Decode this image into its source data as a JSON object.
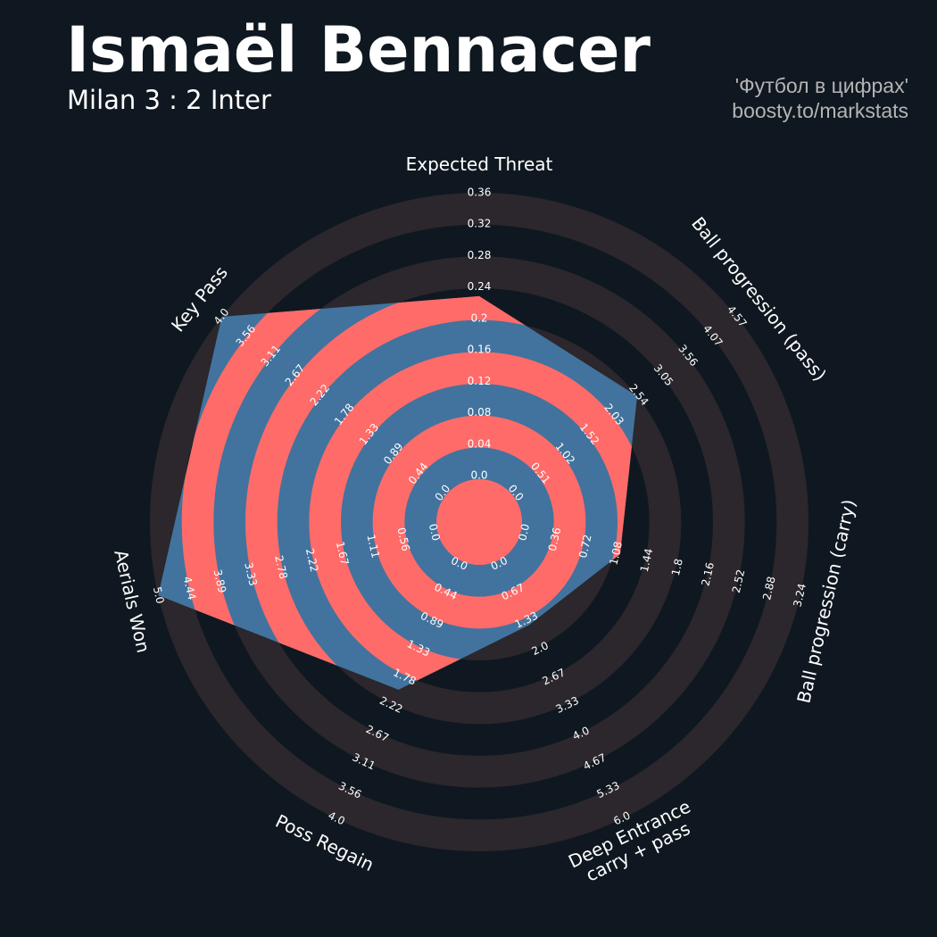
{
  "chart_data": {
    "type": "radar",
    "title": "Ismaël Bennacer",
    "subtitle": "Milan 3 : 2 Inter",
    "credits": [
      "'Футбол в цифрах'",
      "boosty.to/markstats"
    ],
    "colors": {
      "inside_a": "#41739e",
      "inside_b": "#ff6b68",
      "outside_a": "#2b272c"
    },
    "params": [
      {
        "name": [
          "Expected Threat"
        ],
        "lim": [
          0,
          0.36
        ],
        "ticks": [
          {
            "value": 0,
            "label": "0.0"
          },
          0.04,
          0.08,
          0.12,
          0.16,
          0.2,
          0.24,
          0.28,
          0.32,
          0.36
        ]
      },
      {
        "name": [
          "Ball progression (pass)"
        ],
        "lim": [
          0,
          4.57
        ],
        "ticks": [
          {
            "value": 0,
            "label": "0.0"
          },
          0.51,
          1.02,
          1.52,
          2.03,
          2.54,
          3.05,
          3.56,
          4.07,
          4.57
        ]
      },
      {
        "name": [
          "Ball progression (carry)"
        ],
        "lim": [
          0,
          3.24
        ],
        "ticks": [
          {
            "value": 0,
            "label": "0.0"
          },
          0.36,
          0.72,
          1.08,
          1.44,
          1.8,
          2.16,
          2.52,
          2.88,
          3.24
        ]
      },
      {
        "name": [
          "Deep Entrance",
          "carry + pass"
        ],
        "lim": [
          0,
          6
        ],
        "ticks": [
          {
            "value": 0,
            "label": "0.0"
          },
          0.67,
          1.33,
          {
            "value": 2,
            "label": "2.0"
          },
          2.67,
          3.33,
          {
            "value": 4,
            "label": "4.0"
          },
          4.67,
          5.33,
          {
            "value": 6,
            "label": "6.0"
          }
        ]
      },
      {
        "name": [
          "Poss Regain"
        ],
        "lim": [
          0,
          4
        ],
        "ticks": [
          {
            "value": 0,
            "label": "0.0"
          },
          0.44,
          0.89,
          1.33,
          1.78,
          2.22,
          2.67,
          3.11,
          3.56,
          {
            "value": 4,
            "label": "4.0"
          }
        ]
      },
      {
        "name": [
          "Aerials Won"
        ],
        "lim": [
          0,
          5
        ],
        "ticks": [
          {
            "value": 0,
            "label": "0.0"
          },
          0.56,
          1.11,
          1.67,
          2.22,
          2.78,
          3.33,
          3.89,
          4.44,
          {
            "value": 5,
            "label": "5.0"
          }
        ]
      },
      {
        "name": [
          "Key Pass"
        ],
        "lim": [
          0,
          4
        ],
        "ticks": [
          {
            "value": 0,
            "label": "0.0"
          },
          0.44,
          0.89,
          1.33,
          1.78,
          2.22,
          2.67,
          3.11,
          3.56,
          {
            "value": 4,
            "label": "4.0"
          }
        ]
      }
    ],
    "values": [
      0.23,
      2.54,
      1.15,
      1.5,
      2.0,
      5.0,
      4.0
    ]
  }
}
